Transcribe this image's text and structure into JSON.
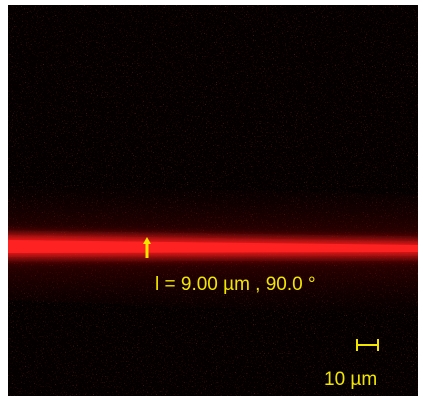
{
  "annotations": {
    "measurement": "l = 9.00 µm ,  90.0 °",
    "scale_bar": "10 µm"
  }
}
